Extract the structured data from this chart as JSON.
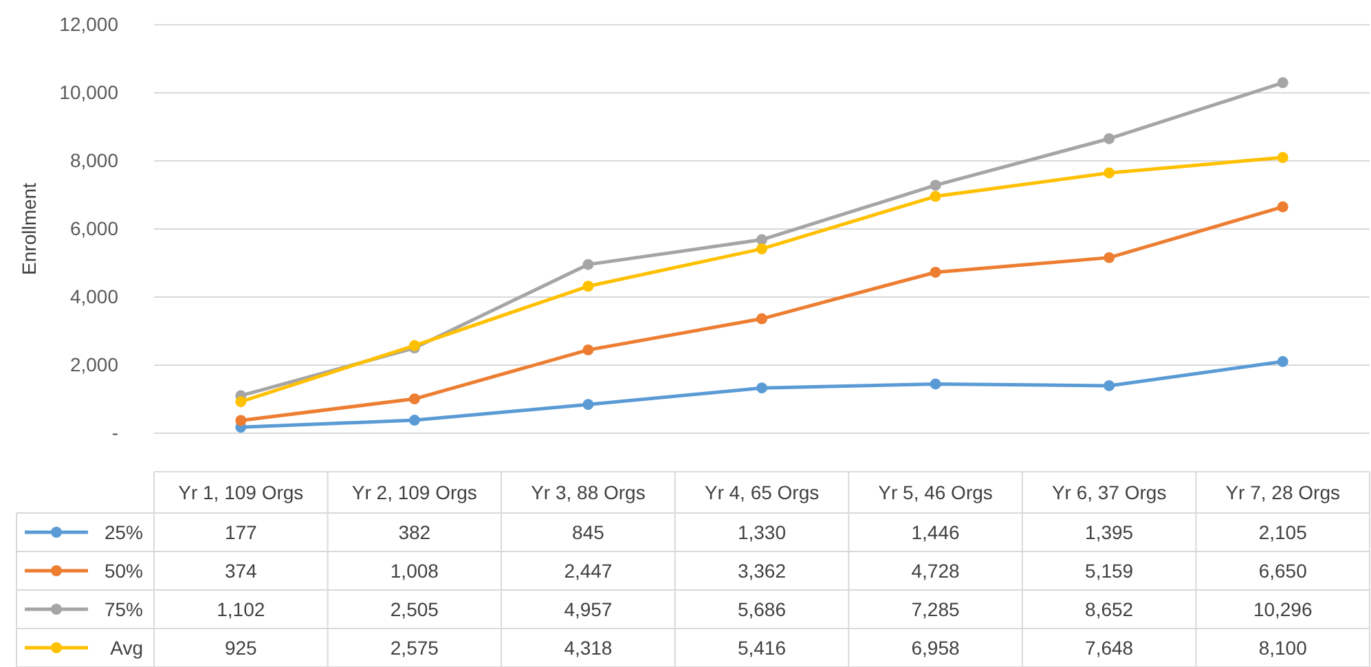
{
  "chart_data": {
    "type": "line",
    "ylabel": "Enrollment",
    "categories": [
      "Yr 1, 109 Orgs",
      "Yr 2, 109 Orgs",
      "Yr 3, 88 Orgs",
      "Yr 4, 65 Orgs",
      "Yr 5, 46 Orgs",
      "Yr 6, 37 Orgs",
      "Yr 7, 28 Orgs"
    ],
    "series": [
      {
        "name": "25%",
        "color": "#5b9bd5",
        "values": [
          177,
          382,
          845,
          1330,
          1446,
          1395,
          2105
        ],
        "value_labels": [
          "177",
          "382",
          "845",
          "1,330",
          "1,446",
          "1,395",
          "2,105"
        ]
      },
      {
        "name": "50%",
        "color": "#ed7d31",
        "values": [
          374,
          1008,
          2447,
          3362,
          4728,
          5159,
          6650
        ],
        "value_labels": [
          "374",
          "1,008",
          "2,447",
          "3,362",
          "4,728",
          "5,159",
          "6,650"
        ]
      },
      {
        "name": "75%",
        "color": "#a5a5a5",
        "values": [
          1102,
          2505,
          4957,
          5686,
          7285,
          8652,
          10296
        ],
        "value_labels": [
          "1,102",
          "2,505",
          "4,957",
          "5,686",
          "7,285",
          "8,652",
          "10,296"
        ]
      },
      {
        "name": "Avg",
        "color": "#ffc000",
        "values": [
          925,
          2575,
          4318,
          5416,
          6958,
          7648,
          8100
        ],
        "value_labels": [
          "925",
          "2,575",
          "4,318",
          "5,416",
          "6,958",
          "7,648",
          "8,100"
        ]
      }
    ],
    "ylim": [
      0,
      12000
    ],
    "yticks": [
      {
        "value": 0,
        "label": "-"
      },
      {
        "value": 2000,
        "label": "2,000"
      },
      {
        "value": 4000,
        "label": "4,000"
      },
      {
        "value": 6000,
        "label": "6,000"
      },
      {
        "value": 8000,
        "label": "8,000"
      },
      {
        "value": 10000,
        "label": "10,000"
      },
      {
        "value": 12000,
        "label": "12,000"
      }
    ],
    "grid": "y",
    "marker": "circle",
    "line_style": "solid",
    "legend": "bottom"
  }
}
